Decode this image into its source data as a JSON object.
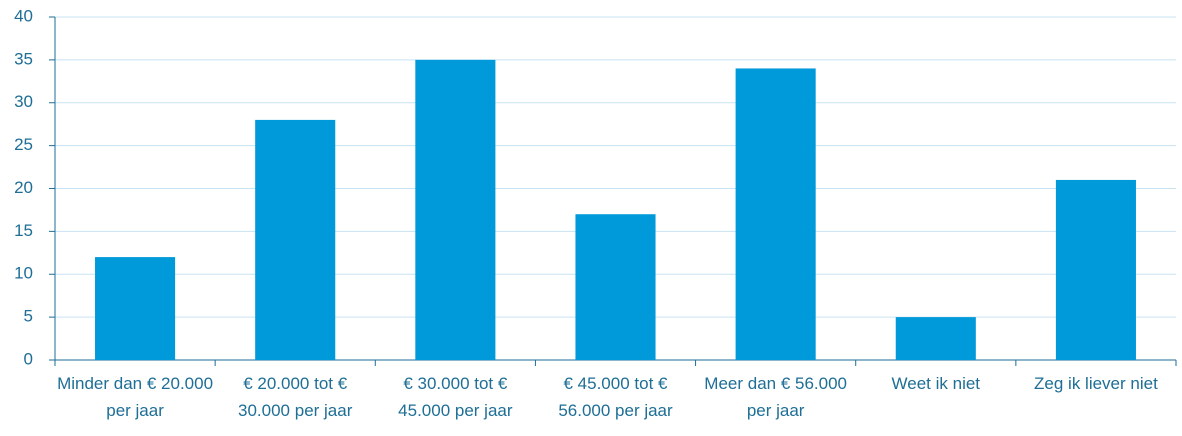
{
  "chart_data": {
    "type": "bar",
    "categories": [
      "Minder dan € 20.000 per jaar",
      "€ 20.000 tot € 30.000 per jaar",
      "€ 30.000 tot € 45.000 per jaar",
      "€ 45.000 tot € 56.000 per jaar",
      "Meer dan € 56.000 per jaar",
      "Weet ik niet",
      "Zeg ik liever niet"
    ],
    "values": [
      12,
      28,
      35,
      17,
      34,
      5,
      21
    ],
    "color": "#0099d9",
    "ylim": [
      0,
      40
    ],
    "yticks": [
      0,
      5,
      10,
      15,
      20,
      25,
      30,
      35,
      40
    ],
    "grid": true
  }
}
